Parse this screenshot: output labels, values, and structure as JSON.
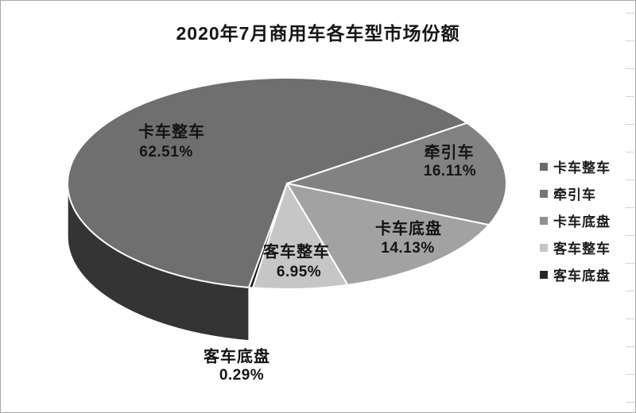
{
  "title": "2020年7月商用车各车型市场份额",
  "chart_data": {
    "type": "pie",
    "style": "3d",
    "title": "2020年7月商用车各车型市场份额",
    "unit": "%",
    "legend_position": "right",
    "legend": [
      "卡车整车",
      "牵引车",
      "卡车底盘",
      "客车整车",
      "客车底盘"
    ],
    "series": [
      {
        "name": "卡车整车",
        "value": 62.51,
        "label": "62.51%",
        "color": "#6f6f6f",
        "side_color": "#343434",
        "legend_color": "#6a6a6a"
      },
      {
        "name": "牵引车",
        "value": 16.11,
        "label": "16.11%",
        "color": "#828282",
        "side_color": "#101010",
        "legend_color": "#757575"
      },
      {
        "name": "卡车底盘",
        "value": 14.13,
        "label": "14.13%",
        "color": "#a2a2a2",
        "side_color": "#141414",
        "legend_color": "#8f8f8f"
      },
      {
        "name": "客车整车",
        "value": 6.95,
        "label": "6.95%",
        "color": "#c6c6c6",
        "side_color": "#303030",
        "legend_color": "#c6c6c6"
      },
      {
        "name": "客车底盘",
        "value": 0.29,
        "label": "0.29%",
        "color": "#1e1e1e",
        "side_color": "#0a0a0a",
        "legend_color": "#262626"
      }
    ]
  }
}
